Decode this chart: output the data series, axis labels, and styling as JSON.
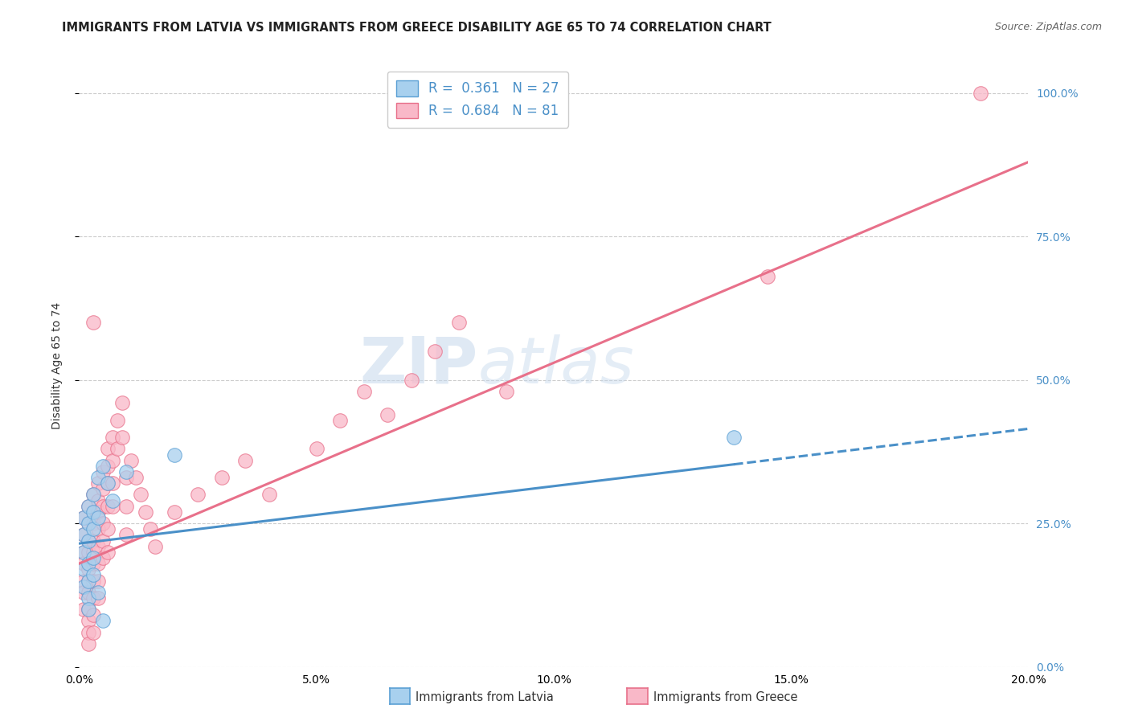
{
  "title": "IMMIGRANTS FROM LATVIA VS IMMIGRANTS FROM GREECE DISABILITY AGE 65 TO 74 CORRELATION CHART",
  "source": "Source: ZipAtlas.com",
  "ylabel": "Disability Age 65 to 74",
  "xmin": 0.0,
  "xmax": 0.2,
  "ymin": 0.0,
  "ymax": 1.05,
  "yticks": [
    0.0,
    0.25,
    0.5,
    0.75,
    1.0
  ],
  "ytick_labels_right": [
    "0.0%",
    "25.0%",
    "50.0%",
    "75.0%",
    "100.0%"
  ],
  "xticks": [
    0.0,
    0.05,
    0.1,
    0.15,
    0.2
  ],
  "xtick_labels": [
    "0.0%",
    "5.0%",
    "10.0%",
    "15.0%",
    "20.0%"
  ],
  "watermark_zip": "ZIP",
  "watermark_atlas": "atlas",
  "legend_latvia_r": "R = ",
  "legend_latvia_rv": "0.361",
  "legend_latvia_n": "N = ",
  "legend_latvia_nv": "27",
  "legend_greece_r": "R = ",
  "legend_greece_rv": "0.684",
  "legend_greece_n": "N = ",
  "legend_greece_nv": "81",
  "latvia_fill_color": "#a8d0ee",
  "latvia_edge_color": "#5a9fd4",
  "latvia_line_color": "#4a90c8",
  "greece_fill_color": "#f9b8c8",
  "greece_edge_color": "#e8708a",
  "greece_line_color": "#e8708a",
  "latvia_scatter_x": [
    0.001,
    0.001,
    0.001,
    0.001,
    0.001,
    0.002,
    0.002,
    0.002,
    0.002,
    0.002,
    0.002,
    0.002,
    0.003,
    0.003,
    0.003,
    0.003,
    0.003,
    0.004,
    0.004,
    0.004,
    0.005,
    0.005,
    0.006,
    0.007,
    0.01,
    0.138,
    0.02
  ],
  "latvia_scatter_y": [
    0.26,
    0.23,
    0.2,
    0.17,
    0.14,
    0.28,
    0.25,
    0.22,
    0.18,
    0.15,
    0.12,
    0.1,
    0.3,
    0.27,
    0.24,
    0.19,
    0.16,
    0.33,
    0.26,
    0.13,
    0.35,
    0.08,
    0.32,
    0.29,
    0.34,
    0.4,
    0.37
  ],
  "greece_scatter_x": [
    0.001,
    0.001,
    0.001,
    0.001,
    0.001,
    0.001,
    0.001,
    0.002,
    0.002,
    0.002,
    0.002,
    0.002,
    0.002,
    0.002,
    0.002,
    0.002,
    0.002,
    0.002,
    0.003,
    0.003,
    0.003,
    0.003,
    0.003,
    0.003,
    0.003,
    0.003,
    0.003,
    0.003,
    0.004,
    0.004,
    0.004,
    0.004,
    0.004,
    0.004,
    0.004,
    0.004,
    0.005,
    0.005,
    0.005,
    0.005,
    0.005,
    0.005,
    0.006,
    0.006,
    0.006,
    0.006,
    0.006,
    0.006,
    0.007,
    0.007,
    0.007,
    0.007,
    0.008,
    0.008,
    0.009,
    0.009,
    0.01,
    0.01,
    0.01,
    0.011,
    0.012,
    0.013,
    0.014,
    0.015,
    0.016,
    0.02,
    0.025,
    0.03,
    0.035,
    0.04,
    0.05,
    0.055,
    0.06,
    0.065,
    0.07,
    0.075,
    0.08,
    0.09,
    0.145,
    0.19,
    0.003
  ],
  "greece_scatter_y": [
    0.26,
    0.23,
    0.2,
    0.18,
    0.15,
    0.13,
    0.1,
    0.28,
    0.25,
    0.22,
    0.2,
    0.17,
    0.15,
    0.13,
    0.1,
    0.08,
    0.06,
    0.04,
    0.3,
    0.27,
    0.25,
    0.22,
    0.2,
    0.18,
    0.15,
    0.12,
    0.09,
    0.06,
    0.32,
    0.29,
    0.27,
    0.24,
    0.21,
    0.18,
    0.15,
    0.12,
    0.34,
    0.31,
    0.28,
    0.25,
    0.22,
    0.19,
    0.38,
    0.35,
    0.32,
    0.28,
    0.24,
    0.2,
    0.4,
    0.36,
    0.32,
    0.28,
    0.43,
    0.38,
    0.46,
    0.4,
    0.33,
    0.28,
    0.23,
    0.36,
    0.33,
    0.3,
    0.27,
    0.24,
    0.21,
    0.27,
    0.3,
    0.33,
    0.36,
    0.3,
    0.38,
    0.43,
    0.48,
    0.44,
    0.5,
    0.55,
    0.6,
    0.48,
    0.68,
    1.0,
    0.6
  ],
  "latvia_trend_x0": 0.0,
  "latvia_trend_y0": 0.215,
  "latvia_trend_x1": 0.2,
  "latvia_trend_y1": 0.415,
  "latvia_solid_xend": 0.138,
  "greece_trend_x0": 0.0,
  "greece_trend_y0": 0.18,
  "greece_trend_x1": 0.2,
  "greece_trend_y1": 0.88,
  "background_color": "#ffffff",
  "grid_color": "#cccccc",
  "title_fontsize": 10.5,
  "axis_label_fontsize": 10,
  "tick_fontsize": 10,
  "legend_fontsize": 12,
  "right_tick_color": "#4a90c8",
  "r_color": "#4a90c8",
  "n_color": "#4a90c8"
}
